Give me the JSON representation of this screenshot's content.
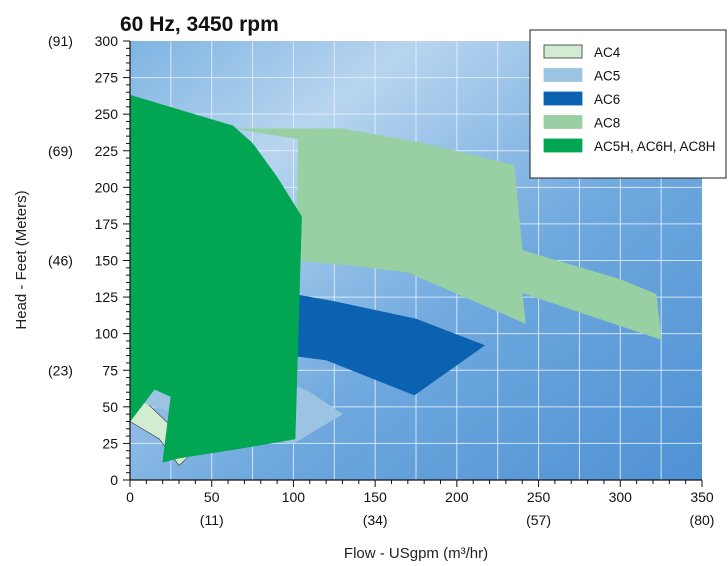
{
  "chart_data": {
    "type": "area",
    "title": "60 Hz, 3450 rpm",
    "xlabel": "Flow - USgpm (m³/hr)",
    "ylabel": "Head - Feet (Meters)",
    "xlim": [
      0,
      350
    ],
    "ylim": [
      0,
      300
    ],
    "x_ticks": [
      0,
      50,
      100,
      150,
      200,
      250,
      300,
      350
    ],
    "x_tick_labels": [
      "0",
      "50",
      "100",
      "150",
      "200",
      "250",
      "300",
      "350"
    ],
    "x_secondary_labels": [
      {
        "x": 50,
        "label": "(11)"
      },
      {
        "x": 150,
        "label": "(34)"
      },
      {
        "x": 250,
        "label": "(57)"
      },
      {
        "x": 350,
        "label": "(80)"
      }
    ],
    "y_ticks": [
      0,
      25,
      50,
      75,
      100,
      125,
      150,
      175,
      200,
      225,
      250,
      275,
      300
    ],
    "y_tick_labels": [
      "0",
      "25",
      "50",
      "75",
      "100",
      "125",
      "150",
      "175",
      "200",
      "225",
      "250",
      "275",
      "300"
    ],
    "y_secondary_labels": [
      {
        "y": 300,
        "label": "(91)"
      },
      {
        "y": 225,
        "label": "(69)"
      },
      {
        "y": 150,
        "label": "(46)"
      },
      {
        "y": 75,
        "label": "(23)"
      }
    ],
    "grid": true,
    "legend_position": "top-right",
    "series": [
      {
        "name": "AC4",
        "color": "#d2ecd2",
        "outline": "#333333",
        "points": [
          [
            0,
            57
          ],
          [
            10,
            53
          ],
          [
            24,
            38
          ],
          [
            35,
            15
          ],
          [
            30,
            10
          ],
          [
            18,
            28
          ],
          [
            0,
            40
          ]
        ]
      },
      {
        "name": "AC5",
        "color": "#9cc3e2",
        "outline": "#9cc3e2",
        "points": [
          [
            0,
            100
          ],
          [
            10,
            90
          ],
          [
            40,
            80
          ],
          [
            80,
            75
          ],
          [
            110,
            60
          ],
          [
            130,
            45
          ],
          [
            100,
            25
          ],
          [
            60,
            32
          ],
          [
            30,
            45
          ],
          [
            10,
            52
          ],
          [
            0,
            56
          ]
        ]
      },
      {
        "name": "AC6",
        "color": "#0a62b0",
        "outline": "#0a62b0",
        "points": [
          [
            0,
            134
          ],
          [
            10,
            126
          ],
          [
            25,
            123
          ],
          [
            50,
            130
          ],
          [
            80,
            131
          ],
          [
            125,
            122
          ],
          [
            175,
            110
          ],
          [
            217,
            92
          ],
          [
            174,
            58
          ],
          [
            120,
            82
          ],
          [
            50,
            92
          ],
          [
            20,
            93
          ],
          [
            0,
            108
          ]
        ]
      },
      {
        "name": "AC8",
        "color": "#98d0a4",
        "outline": "#98d0a4",
        "points": [
          [
            65,
            240
          ],
          [
            130,
            240
          ],
          [
            180,
            230
          ],
          [
            235,
            215
          ],
          [
            240,
            157
          ],
          [
            300,
            137
          ],
          [
            322,
            127
          ],
          [
            325,
            96
          ],
          [
            240,
            128
          ],
          [
            242,
            107
          ],
          [
            170,
            142
          ],
          [
            133,
            147
          ],
          [
            102,
            150
          ],
          [
            103,
            233
          ]
        ]
      },
      {
        "name": "AC5H, AC6H, AC8H",
        "color": "#00a651",
        "outline": "#00a651",
        "points": [
          [
            0,
            263
          ],
          [
            30,
            253
          ],
          [
            63,
            242
          ],
          [
            75,
            230
          ],
          [
            90,
            207
          ],
          [
            105,
            180
          ],
          [
            101,
            28
          ],
          [
            70,
            22
          ],
          [
            30,
            15
          ],
          [
            20,
            12
          ],
          [
            25,
            57
          ],
          [
            15,
            62
          ],
          [
            0,
            40
          ]
        ]
      }
    ]
  }
}
